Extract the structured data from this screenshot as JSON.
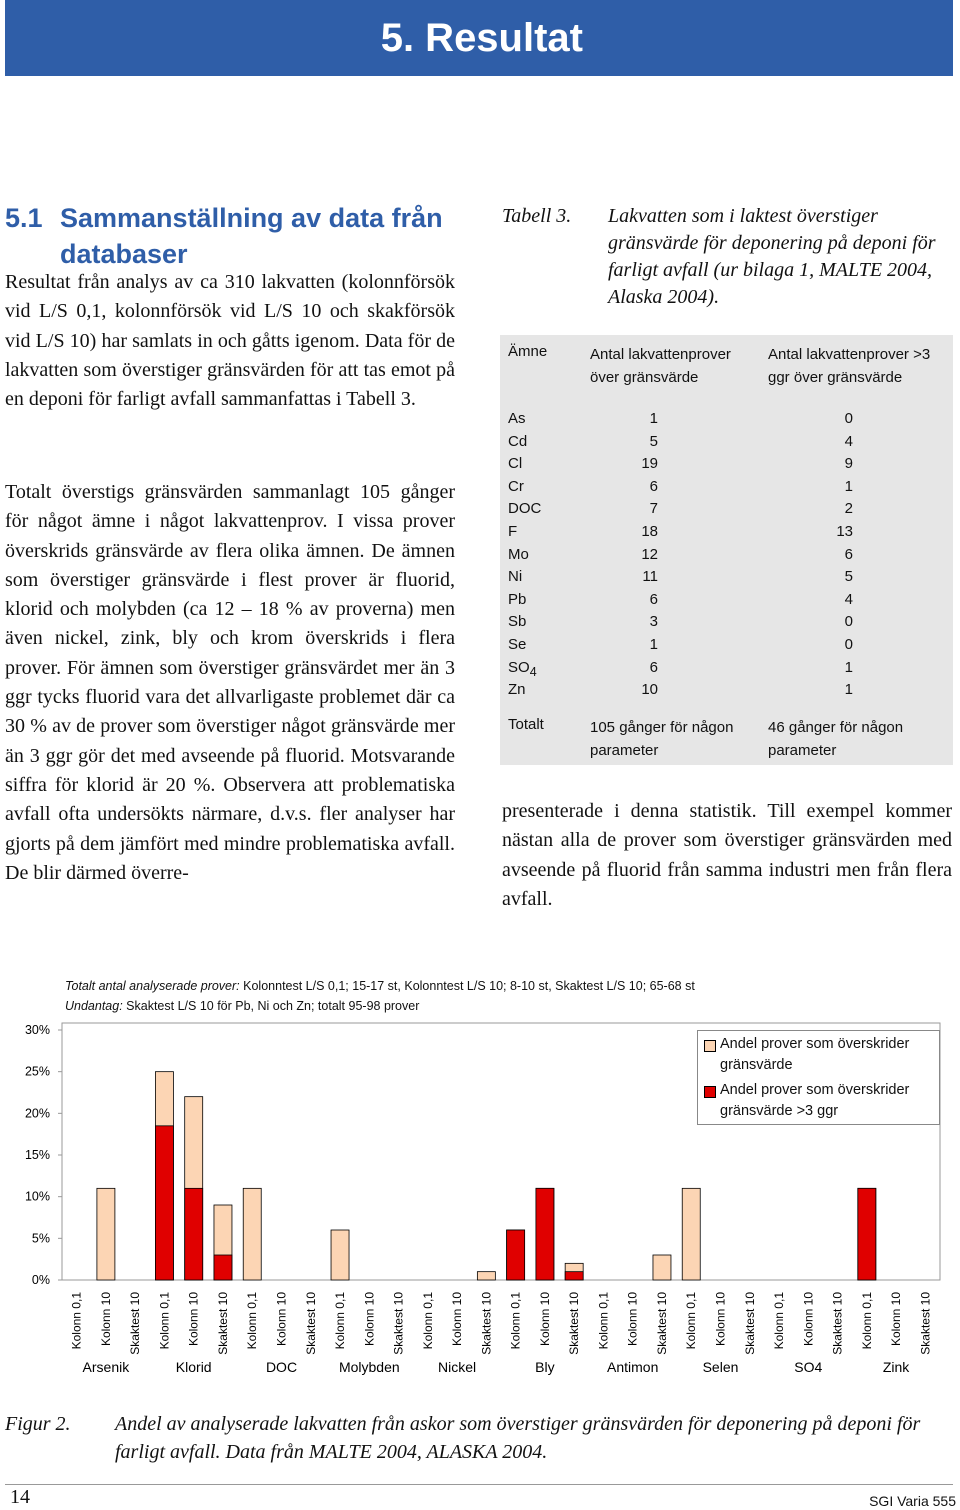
{
  "header": {
    "title": "5. Resultat"
  },
  "section": {
    "number": "5.1",
    "heading": "Sammanställning av data från databaser",
    "paragraphs": [
      "Resultat från analys av ca 310 lakvatten (kolonnförsök vid L/S 0,1, kolonnförsök vid L/S 10 och skakförsök vid L/S 10) har samlats in och gåtts igenom. Data för de lakvatten som överstiger gränsvärden för att tas emot på en deponi för farligt avfall sammanfattas i Tabell 3.",
      "Totalt överstigs gränsvärden sammanlagt 105 gånger för något ämne i något lakvattenprov. I vissa prover överskrids gränsvärde av flera olika ämnen. De ämnen som överstiger gränsvärde i flest prover är fluorid, klorid och molybden (ca 12 – 18 % av proverna) men även nickel, zink, bly och krom överskrids i flera prover. För ämnen som överstiger gränsvärdet mer än 3 ggr tycks fluorid vara det allvarligaste problemet där ca 30 % av de prover som överstiger något gränsvärde mer än 3 ggr gör det med avseende på fluorid. Motsvarande siffra för klorid är 20 %. Observera att problematiska avfall ofta undersökts närmare, d.v.s. fler analyser har gjorts på dem jämfört med mindre problematiska avfall. De blir därmed överre-"
    ],
    "continuation": "presenterade i denna statistik. Till exempel kommer nästan alla de prover som överstiger gränsvärden med avseende på fluorid från samma industri men från flera avfall."
  },
  "table": {
    "label": "Tabell 3.",
    "caption": "Lakvatten som i laktest överstiger gränsvärde för deponering på deponi för farligt avfall (ur bilaga 1, MALTE 2004, Alaska 2004).",
    "header": [
      "Ämne",
      "Antal lakvattenprover över gränsvärde",
      "Antal lakvattenprover >3 ggr över gränsvärde"
    ],
    "rows": [
      {
        "name": "As",
        "over": 1,
        "over3": 0
      },
      {
        "name": "Cd",
        "over": 5,
        "over3": 4
      },
      {
        "name": "Cl",
        "over": 19,
        "over3": 9
      },
      {
        "name": "Cr",
        "over": 6,
        "over3": 1
      },
      {
        "name": "DOC",
        "over": 7,
        "over3": 2
      },
      {
        "name": "F",
        "over": 18,
        "over3": 13
      },
      {
        "name": "Mo",
        "over": 12,
        "over3": 6
      },
      {
        "name": "Ni",
        "over": 11,
        "over3": 5
      },
      {
        "name": "Pb",
        "over": 6,
        "over3": 4
      },
      {
        "name": "Sb",
        "over": 3,
        "over3": 0
      },
      {
        "name": "Se",
        "over": 1,
        "over3": 0
      },
      {
        "name": "SO",
        "name_sub": "4",
        "over": 6,
        "over3": 1
      },
      {
        "name": "Zn",
        "over": 10,
        "over3": 1
      }
    ],
    "total": [
      "Totalt",
      "105 gånger för någon parameter",
      "46 gånger för någon parameter"
    ]
  },
  "chart_data": {
    "type": "bar",
    "notes": [
      {
        "label": "Totalt antal analyserade prover:",
        "text": "Kolonntest L/S 0,1; 15-17 st, Kolonntest L/S 10; 8-10 st, Skaktest L/S 10; 65-68 st"
      },
      {
        "label": "Undantag:",
        "text": "Skaktest L/S 10 för Pb, Ni och Zn; totalt 95-98 prover"
      }
    ],
    "categories": [
      "Kolonn 0,1",
      "Kolonn 10",
      "Skaktest 10",
      "Kolonn 0,1",
      "Kolonn 10",
      "Skaktest 10",
      "Kolonn 0,1",
      "Kolonn 10",
      "Skaktest 10",
      "Kolonn 0,1",
      "Kolonn 10",
      "Skaktest 10",
      "Kolonn 0,1",
      "Kolonn 10",
      "Skaktest 10",
      "Kolonn 0,1",
      "Kolonn 10",
      "Skaktest 10",
      "Kolonn 0,1",
      "Kolonn 10",
      "Skaktest 10",
      "Kolonn 0,1",
      "Kolonn 10",
      "Skaktest 10",
      "Kolonn 0,1",
      "Kolonn 10",
      "Skaktest 10",
      "Kolonn 0,1",
      "Kolonn 10",
      "Skaktest 10"
    ],
    "groups": [
      "Arsenik",
      "Klorid",
      "DOC",
      "Molybden",
      "Nickel",
      "Bly",
      "Antimon",
      "Selen",
      "SO4",
      "Zink"
    ],
    "series": [
      {
        "name": "Andel prover som överskrider gränsvärde",
        "color": "#fcd5b4",
        "values": [
          0,
          11,
          0,
          25,
          22,
          9,
          11,
          0,
          0,
          6,
          0,
          0,
          0,
          0,
          1,
          6,
          11,
          2,
          0,
          0,
          3,
          11,
          0,
          0,
          0,
          0,
          0,
          11,
          0,
          0
        ]
      },
      {
        "name": "Andel prover som överskrider gränsvärde >3 ggr",
        "color": "#e00000",
        "values": [
          0,
          0,
          0,
          18.5,
          11,
          3,
          0,
          0,
          0,
          0,
          0,
          0,
          0,
          0,
          0,
          6,
          11,
          1,
          0,
          0,
          0,
          0,
          0,
          0,
          0,
          0,
          0,
          11,
          0,
          0
        ]
      }
    ],
    "ylim": [
      0,
      30
    ],
    "yticks": [
      {
        "value": 0,
        "label": "0%"
      },
      {
        "value": 5,
        "label": "5%"
      },
      {
        "value": 10,
        "label": "10%"
      },
      {
        "value": 15,
        "label": "15%"
      },
      {
        "value": 20,
        "label": "20%"
      },
      {
        "value": 25,
        "label": "25%"
      },
      {
        "value": 30,
        "label": "30%"
      }
    ],
    "grid": false,
    "legend": "upper right"
  },
  "figure": {
    "label": "Figur 2.",
    "caption": "Andel av analyserade lakvatten från askor som överstiger gränsvärden för deponering på deponi för farligt avfall. Data från MALTE 2004, ALASKA 2004."
  },
  "footer": {
    "page": "14",
    "series": "SGI Varia 555"
  }
}
